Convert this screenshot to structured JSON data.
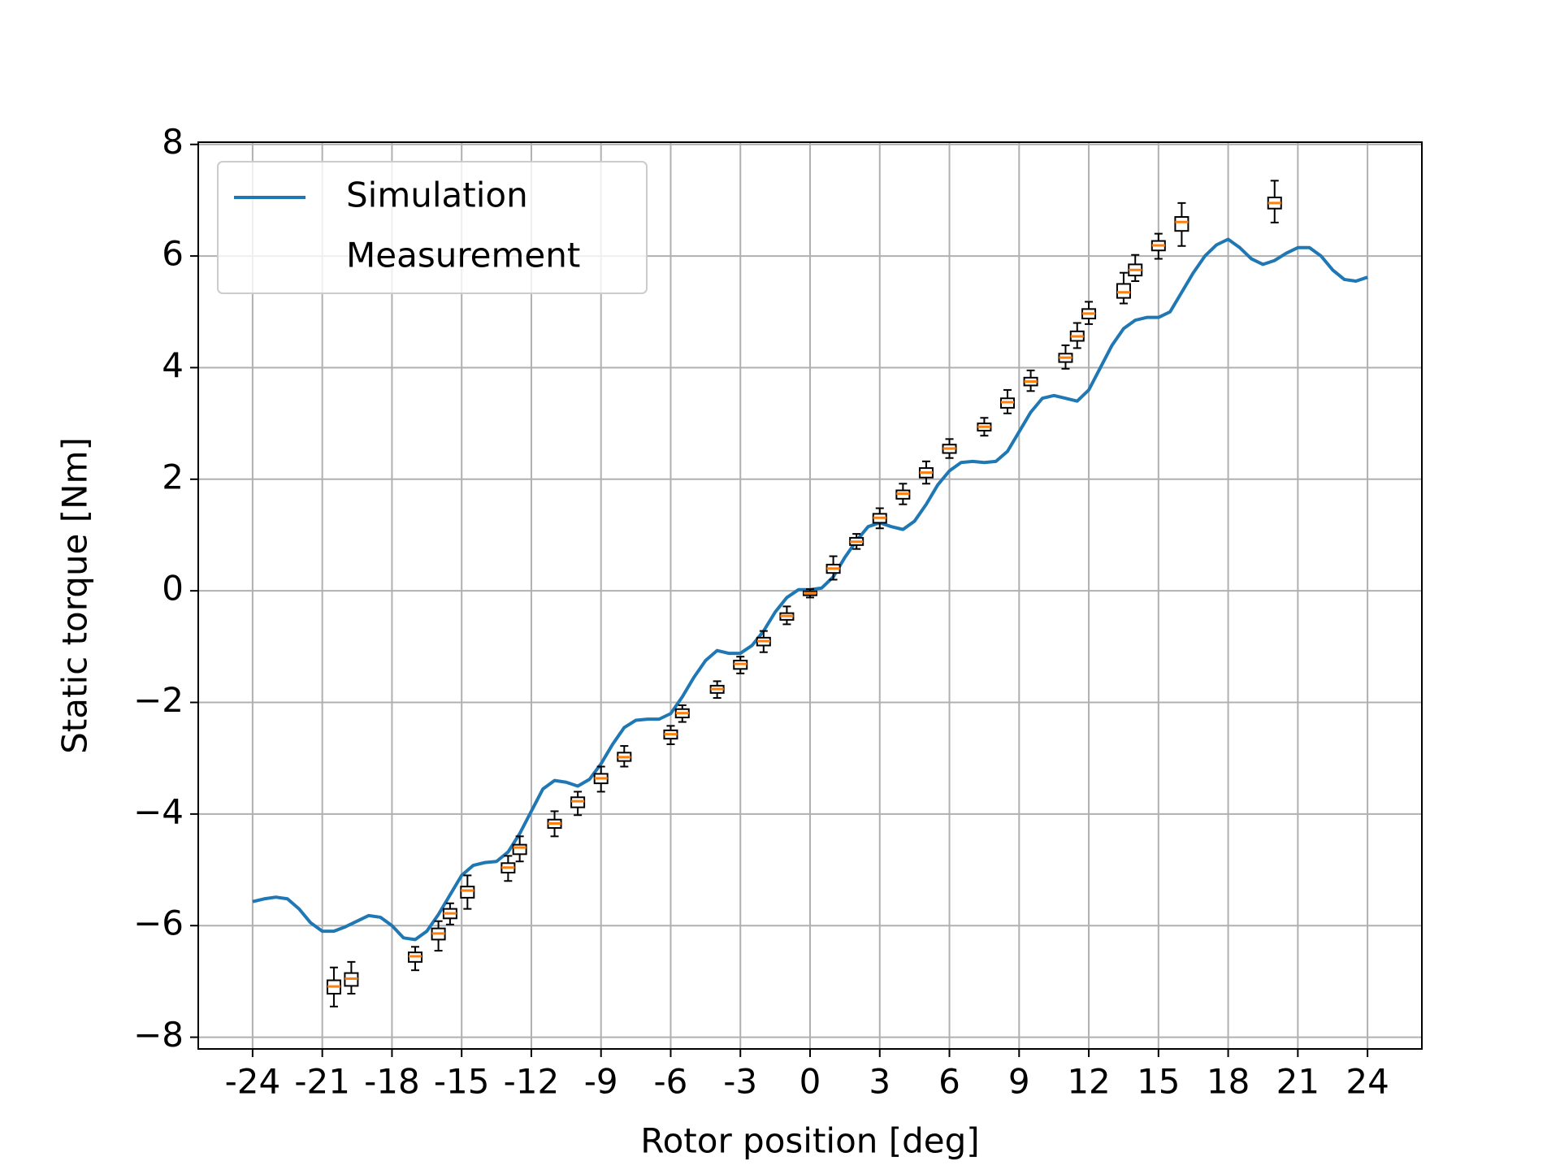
{
  "chart_data": {
    "type": "line",
    "xlabel": "Rotor position [deg]",
    "ylabel": "Static torque [Nm]",
    "xlim": [
      -26.34,
      26.34
    ],
    "ylim": [
      -8.21,
      8.04
    ],
    "xticks": [
      -24,
      -21,
      -18,
      -15,
      -12,
      -9,
      -6,
      -3,
      0,
      3,
      6,
      9,
      12,
      15,
      18,
      21,
      24
    ],
    "yticks": [
      {
        "value": -8,
        "label": "−8"
      },
      {
        "value": -6,
        "label": "−6"
      },
      {
        "value": -4,
        "label": "−4"
      },
      {
        "value": -2,
        "label": "−2"
      },
      0,
      2,
      4,
      6,
      8
    ],
    "grid": true,
    "legend": "upper left",
    "series": [
      {
        "name": "Simulation",
        "color": "#1f77b4",
        "x": [
          -24,
          -23.5,
          -23,
          -22.5,
          -22,
          -21.5,
          -21,
          -20.5,
          -20,
          -19.5,
          -19,
          -18.5,
          -18,
          -17.5,
          -17,
          -16.5,
          -16,
          -15.5,
          -15,
          -14.5,
          -14,
          -13.5,
          -13,
          -12.5,
          -12,
          -11.5,
          -11,
          -10.5,
          -10,
          -9.5,
          -9,
          -8.5,
          -8,
          -7.5,
          -7,
          -6.5,
          -6,
          -5.5,
          -5,
          -4.5,
          -4,
          -3.5,
          -3,
          -2.5,
          -2,
          -1.5,
          -1,
          -0.5,
          0,
          0.5,
          1,
          1.5,
          2,
          2.5,
          3,
          3.5,
          4,
          4.5,
          5,
          5.5,
          6,
          6.5,
          7,
          7.5,
          8,
          8.5,
          9,
          9.5,
          10,
          10.5,
          11,
          11.5,
          12,
          12.5,
          13,
          13.5,
          14,
          14.5,
          15,
          15.5,
          16,
          16.5,
          17,
          17.5,
          18,
          18.5,
          19,
          19.5,
          20,
          20.5,
          21,
          21.5,
          22,
          22.5,
          23,
          23.5,
          24
        ],
        "values": [
          -5.57,
          -5.52,
          -5.49,
          -5.52,
          -5.7,
          -5.95,
          -6.1,
          -6.1,
          -6.02,
          -5.92,
          -5.82,
          -5.85,
          -6.0,
          -6.22,
          -6.25,
          -6.1,
          -5.8,
          -5.45,
          -5.1,
          -4.92,
          -4.87,
          -4.85,
          -4.68,
          -4.35,
          -3.95,
          -3.55,
          -3.4,
          -3.43,
          -3.5,
          -3.38,
          -3.1,
          -2.75,
          -2.45,
          -2.32,
          -2.3,
          -2.3,
          -2.2,
          -1.9,
          -1.55,
          -1.25,
          -1.07,
          -1.12,
          -1.12,
          -0.98,
          -0.72,
          -0.38,
          -0.12,
          0.02,
          0.02,
          0.05,
          0.25,
          0.6,
          0.9,
          1.15,
          1.22,
          1.15,
          1.1,
          1.25,
          1.55,
          1.9,
          2.15,
          2.3,
          2.32,
          2.3,
          2.32,
          2.5,
          2.85,
          3.2,
          3.45,
          3.5,
          3.45,
          3.4,
          3.6,
          4.0,
          4.4,
          4.7,
          4.85,
          4.9,
          4.9,
          5.0,
          5.35,
          5.7,
          6.0,
          6.2,
          6.3,
          6.15,
          5.95,
          5.85,
          5.92,
          6.05,
          6.15,
          6.15,
          6.0,
          5.75,
          5.58,
          5.55,
          5.62
        ]
      },
      {
        "name": "Measurement",
        "type": "box",
        "color": "#000000",
        "median_color": "#ff7f0e",
        "x": [
          -20.5,
          -19.75,
          -17,
          -16,
          -15.5,
          -14.75,
          -13,
          -12.5,
          -11,
          -10,
          -9,
          -8,
          -6,
          -5.5,
          -4,
          -3,
          -2,
          -1,
          0,
          1,
          2,
          3,
          4,
          5,
          6,
          7.5,
          8.5,
          9.5,
          11,
          11.5,
          12,
          13.5,
          14,
          15,
          16,
          20
        ],
        "whislo": [
          -7.45,
          -7.22,
          -6.8,
          -6.45,
          -5.98,
          -5.7,
          -5.2,
          -4.85,
          -4.4,
          -4.02,
          -3.6,
          -3.15,
          -2.75,
          -2.35,
          -1.92,
          -1.48,
          -1.1,
          -0.6,
          -0.12,
          0.2,
          0.75,
          1.12,
          1.55,
          1.92,
          2.38,
          2.78,
          3.18,
          3.58,
          3.98,
          4.35,
          4.78,
          5.15,
          5.55,
          5.95,
          6.18,
          6.6
        ],
        "q1": [
          -7.22,
          -7.08,
          -6.65,
          -6.25,
          -5.87,
          -5.5,
          -5.05,
          -4.72,
          -4.25,
          -3.88,
          -3.45,
          -3.05,
          -2.65,
          -2.27,
          -1.83,
          -1.4,
          -0.98,
          -0.52,
          -0.08,
          0.32,
          0.82,
          1.22,
          1.65,
          2.03,
          2.47,
          2.87,
          3.28,
          3.68,
          4.1,
          4.48,
          4.88,
          5.25,
          5.65,
          6.1,
          6.45,
          6.85
        ],
        "median": [
          -7.09,
          -6.95,
          -6.55,
          -6.14,
          -5.78,
          -5.37,
          -4.96,
          -4.6,
          -4.17,
          -3.77,
          -3.36,
          -2.98,
          -2.57,
          -2.19,
          -1.76,
          -1.31,
          -0.9,
          -0.45,
          -0.04,
          0.4,
          0.88,
          1.31,
          1.74,
          2.12,
          2.55,
          2.94,
          3.38,
          3.75,
          4.18,
          4.56,
          4.97,
          5.35,
          5.75,
          6.19,
          6.61,
          6.95
        ],
        "q3": [
          -6.98,
          -6.85,
          -6.48,
          -6.05,
          -5.7,
          -5.3,
          -4.88,
          -4.55,
          -4.1,
          -3.7,
          -3.28,
          -2.9,
          -2.5,
          -2.12,
          -1.7,
          -1.25,
          -0.84,
          -0.4,
          -0.01,
          0.47,
          0.95,
          1.38,
          1.8,
          2.2,
          2.62,
          3.0,
          3.45,
          3.82,
          4.25,
          4.65,
          5.05,
          5.5,
          5.85,
          6.27,
          6.7,
          7.05
        ],
        "whishi": [
          -6.75,
          -6.65,
          -6.38,
          -5.92,
          -5.6,
          -5.1,
          -4.75,
          -4.4,
          -3.95,
          -3.6,
          -3.15,
          -2.78,
          -2.42,
          -2.05,
          -1.62,
          -1.18,
          -0.72,
          -0.28,
          0.03,
          0.62,
          1.02,
          1.48,
          1.92,
          2.32,
          2.72,
          3.1,
          3.6,
          3.95,
          4.4,
          4.8,
          5.18,
          5.7,
          6.02,
          6.4,
          6.95,
          7.35
        ]
      }
    ]
  }
}
